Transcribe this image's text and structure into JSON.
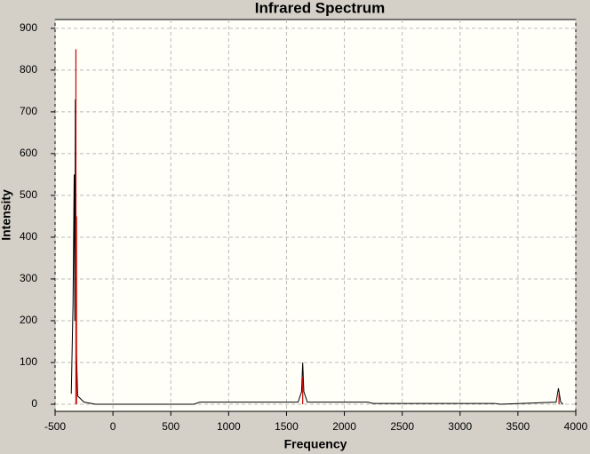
{
  "chart_data": {
    "type": "line",
    "title": "Infrared Spectrum",
    "x_label": "Frequency",
    "y_label": "Intensity",
    "xlim": [
      -500,
      4000
    ],
    "xticks": [
      -500,
      0,
      500,
      1000,
      1500,
      2000,
      2500,
      3000,
      3500,
      4000
    ],
    "ylim": [
      -17,
      921
    ],
    "yticks": [
      0,
      100,
      200,
      300,
      400,
      500,
      600,
      700,
      800,
      900
    ],
    "grid": true,
    "series": [
      {
        "color": "#000000",
        "style": "line",
        "x": [
          -360,
          -345,
          -335,
          -330,
          -325,
          -320,
          -315,
          -305,
          -250,
          -150,
          700,
          750,
          1600,
          1630,
          1640,
          1650,
          1680,
          2200,
          2250,
          3300,
          3350,
          3830,
          3850,
          3870,
          3890
        ],
        "values": [
          25,
          240,
          550,
          200,
          730,
          450,
          120,
          20,
          5,
          0,
          0,
          5,
          5,
          30,
          100,
          30,
          5,
          5,
          2,
          2,
          0,
          5,
          38,
          5,
          0
        ]
      },
      {
        "color": "#cc0000",
        "style": "stick",
        "x": [
          -320,
          -315,
          1640,
          3855
        ],
        "values": [
          850,
          450,
          65,
          25
        ]
      }
    ]
  }
}
